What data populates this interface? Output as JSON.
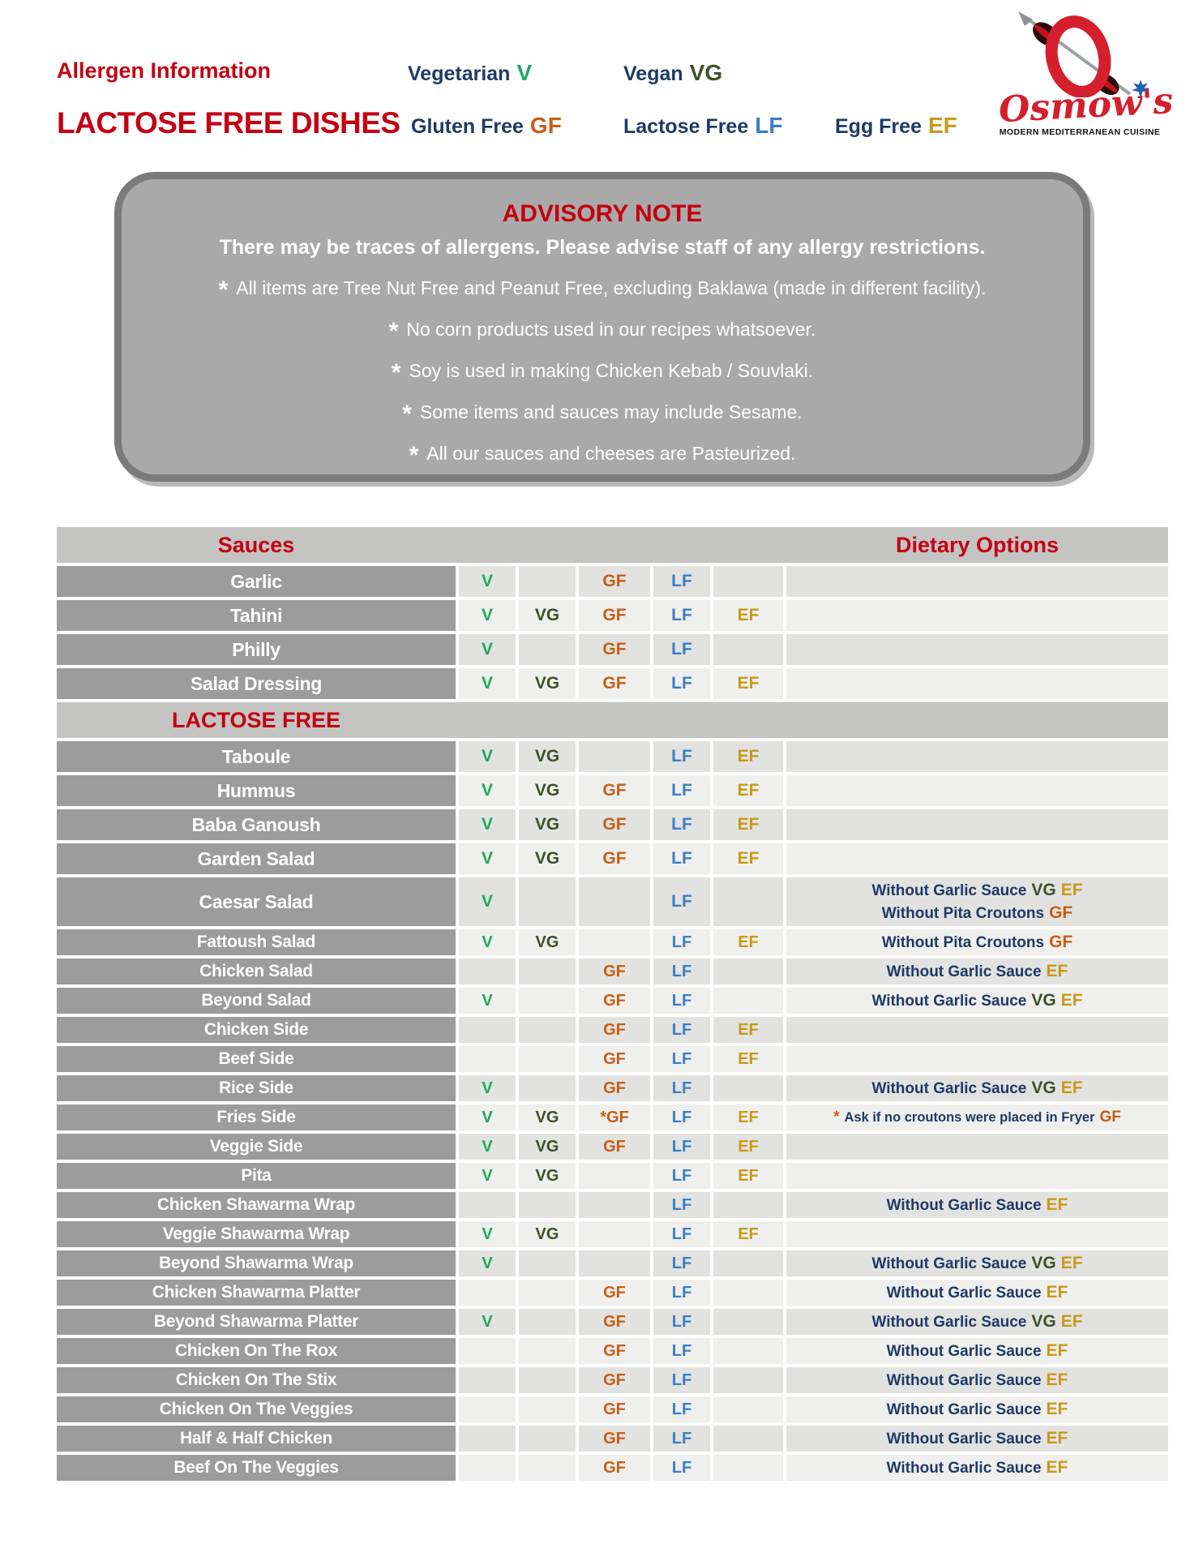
{
  "header": {
    "title_small": "Allergen Information",
    "title_large": "LACTOSE FREE DISHES",
    "legend": [
      {
        "label": "Vegetarian",
        "code": "V",
        "key": "v"
      },
      {
        "label": "Vegan",
        "code": "VG",
        "key": "vg"
      },
      {
        "label": "Gluten Free",
        "code": "GF",
        "key": "gf"
      },
      {
        "label": "Lactose Free",
        "code": "LF",
        "key": "lf"
      },
      {
        "label": "Egg Free",
        "code": "EF",
        "key": "ef"
      }
    ]
  },
  "logo": {
    "brand": "Osmow's",
    "tagline": "MODERN MEDITERRANEAN CUISINE"
  },
  "advisory": {
    "title": "ADVISORY NOTE",
    "subtitle": "There may be traces of allergens. Please advise staff of any allergy restrictions.",
    "bullets": [
      "All items are Tree Nut Free and Peanut Free, excluding Baklawa (made in different facility).",
      "No corn products used in our recipes whatsoever.",
      "Soy is used in making Chicken Kebab / Souvlaki.",
      "Some items and sauces may include Sesame.",
      "All our sauces and cheeses are Pasteurized."
    ]
  },
  "colors": {
    "red": "#c30011",
    "navy": "#1e3a66",
    "vegetarian_green": "#1fa95c",
    "vegan_olive": "#3f5024",
    "gluten_orange": "#c65f16",
    "lactose_blue": "#3a7fc6",
    "egg_gold": "#c89a1b",
    "name_column_gray": "#9c9c9c",
    "band_gray": "#c4c4c3",
    "stripe_dark": "#e2e2e1",
    "stripe_light": "#efefee",
    "advisory_gray": "#a9a9a9"
  },
  "table": {
    "col_header_left": "Sauces",
    "col_header_right": "Dietary Options",
    "section_label": "LACTOSE FREE",
    "badge_keys": [
      "v",
      "vg",
      "gf",
      "lf",
      "ef"
    ],
    "rows": [
      {
        "name": "Garlic",
        "badges": [
          "V",
          "",
          "GF",
          "LF",
          ""
        ],
        "options": [],
        "size": "md"
      },
      {
        "name": "Tahini",
        "badges": [
          "V",
          "VG",
          "GF",
          "LF",
          "EF"
        ],
        "options": [],
        "size": "md"
      },
      {
        "name": "Philly",
        "badges": [
          "V",
          "",
          "GF",
          "LF",
          ""
        ],
        "options": [],
        "size": "md"
      },
      {
        "name": "Salad Dressing",
        "badges": [
          "V",
          "VG",
          "GF",
          "LF",
          "EF"
        ],
        "options": [],
        "size": "md"
      },
      {
        "section": true
      },
      {
        "name": "Taboule",
        "badges": [
          "V",
          "VG",
          "",
          "LF",
          "EF"
        ],
        "options": [],
        "size": "md"
      },
      {
        "name": "Hummus",
        "badges": [
          "V",
          "VG",
          "GF",
          "LF",
          "EF"
        ],
        "options": [],
        "size": "md"
      },
      {
        "name": "Baba Ganoush",
        "badges": [
          "V",
          "VG",
          "GF",
          "LF",
          "EF"
        ],
        "options": [],
        "size": "md"
      },
      {
        "name": "Garden Salad",
        "badges": [
          "V",
          "VG",
          "GF",
          "LF",
          "EF"
        ],
        "options": [],
        "size": "md"
      },
      {
        "name": "Caesar Salad",
        "badges": [
          "V",
          "",
          "",
          "LF",
          ""
        ],
        "size": "tall",
        "options": [
          [
            [
              "Without Garlic Sauce",
              "navy"
            ],
            [
              "VG",
              "vg"
            ],
            [
              "EF",
              "ef"
            ]
          ],
          [
            [
              "Without Pita Croutons",
              "navy"
            ],
            [
              "GF",
              "gf"
            ]
          ]
        ]
      },
      {
        "name": "Fattoush Salad",
        "badges": [
          "V",
          "VG",
          "",
          "LF",
          "EF"
        ],
        "size": "sm",
        "options": [
          [
            [
              "Without Pita Croutons",
              "navy"
            ],
            [
              "GF",
              "gf"
            ]
          ]
        ]
      },
      {
        "name": "Chicken Salad",
        "badges": [
          "",
          "",
          "GF",
          "LF",
          ""
        ],
        "size": "sm",
        "options": [
          [
            [
              "Without Garlic Sauce",
              "navy"
            ],
            [
              "EF",
              "ef"
            ]
          ]
        ]
      },
      {
        "name": "Beyond Salad",
        "badges": [
          "V",
          "",
          "GF",
          "LF",
          ""
        ],
        "size": "sm",
        "options": [
          [
            [
              "Without Garlic Sauce",
              "navy"
            ],
            [
              "VG",
              "vg"
            ],
            [
              "EF",
              "ef"
            ]
          ]
        ]
      },
      {
        "name": "Chicken Side",
        "badges": [
          "",
          "",
          "GF",
          "LF",
          "EF"
        ],
        "options": [],
        "size": "sm"
      },
      {
        "name": "Beef Side",
        "badges": [
          "",
          "",
          "GF",
          "LF",
          "EF"
        ],
        "options": [],
        "size": "sm"
      },
      {
        "name": "Rice Side",
        "badges": [
          "V",
          "",
          "GF",
          "LF",
          ""
        ],
        "size": "sm",
        "options": [
          [
            [
              "Without Garlic Sauce",
              "navy"
            ],
            [
              "VG",
              "vg"
            ],
            [
              "EF",
              "ef"
            ]
          ]
        ]
      },
      {
        "name": "Fries Side",
        "badges": [
          "V",
          "VG",
          "*GF",
          "LF",
          "EF"
        ],
        "size": "sm",
        "opt_small": true,
        "options": [
          [
            [
              "*",
              "gf"
            ],
            [
              "Ask if no croutons were placed in Fryer",
              "navy"
            ],
            [
              "GF",
              "gf"
            ]
          ]
        ]
      },
      {
        "name": "Veggie Side",
        "badges": [
          "V",
          "VG",
          "GF",
          "LF",
          "EF"
        ],
        "options": [],
        "size": "sm"
      },
      {
        "name": "Pita",
        "badges": [
          "V",
          "VG",
          "",
          "LF",
          "EF"
        ],
        "options": [],
        "size": "sm"
      },
      {
        "name": "Chicken Shawarma Wrap",
        "badges": [
          "",
          "",
          "",
          "LF",
          ""
        ],
        "size": "sm",
        "options": [
          [
            [
              "Without Garlic Sauce",
              "navy"
            ],
            [
              "EF",
              "ef"
            ]
          ]
        ]
      },
      {
        "name": "Veggie Shawarma Wrap",
        "badges": [
          "V",
          "VG",
          "",
          "LF",
          "EF"
        ],
        "options": [],
        "size": "sm"
      },
      {
        "name": "Beyond Shawarma Wrap",
        "badges": [
          "V",
          "",
          "",
          "LF",
          ""
        ],
        "size": "sm",
        "options": [
          [
            [
              "Without Garlic Sauce",
              "navy"
            ],
            [
              "VG",
              "vg"
            ],
            [
              "EF",
              "ef"
            ]
          ]
        ]
      },
      {
        "name": "Chicken Shawarma Platter",
        "badges": [
          "",
          "",
          "GF",
          "LF",
          ""
        ],
        "size": "sm",
        "options": [
          [
            [
              "Without Garlic Sauce",
              "navy"
            ],
            [
              "EF",
              "ef"
            ]
          ]
        ]
      },
      {
        "name": "Beyond Shawarma Platter",
        "badges": [
          "V",
          "",
          "GF",
          "LF",
          ""
        ],
        "size": "sm",
        "options": [
          [
            [
              "Without Garlic Sauce",
              "navy"
            ],
            [
              "VG",
              "vg"
            ],
            [
              "EF",
              "ef"
            ]
          ]
        ]
      },
      {
        "name": "Chicken On The Rox",
        "badges": [
          "",
          "",
          "GF",
          "LF",
          ""
        ],
        "size": "sm",
        "options": [
          [
            [
              "Without Garlic Sauce",
              "navy"
            ],
            [
              "EF",
              "ef"
            ]
          ]
        ]
      },
      {
        "name": "Chicken On The Stix",
        "badges": [
          "",
          "",
          "GF",
          "LF",
          ""
        ],
        "size": "sm",
        "options": [
          [
            [
              "Without Garlic Sauce",
              "navy"
            ],
            [
              "EF",
              "ef"
            ]
          ]
        ]
      },
      {
        "name": "Chicken On The Veggies",
        "badges": [
          "",
          "",
          "GF",
          "LF",
          ""
        ],
        "size": "sm",
        "options": [
          [
            [
              "Without Garlic Sauce",
              "navy"
            ],
            [
              "EF",
              "ef"
            ]
          ]
        ]
      },
      {
        "name": "Half & Half Chicken",
        "badges": [
          "",
          "",
          "GF",
          "LF",
          ""
        ],
        "size": "sm",
        "options": [
          [
            [
              "Without Garlic Sauce",
              "navy"
            ],
            [
              "EF",
              "ef"
            ]
          ]
        ]
      },
      {
        "name": "Beef On The Veggies",
        "badges": [
          "",
          "",
          "GF",
          "LF",
          ""
        ],
        "size": "sm",
        "options": [
          [
            [
              "Without Garlic Sauce",
              "navy"
            ],
            [
              "EF",
              "ef"
            ]
          ]
        ]
      }
    ]
  }
}
